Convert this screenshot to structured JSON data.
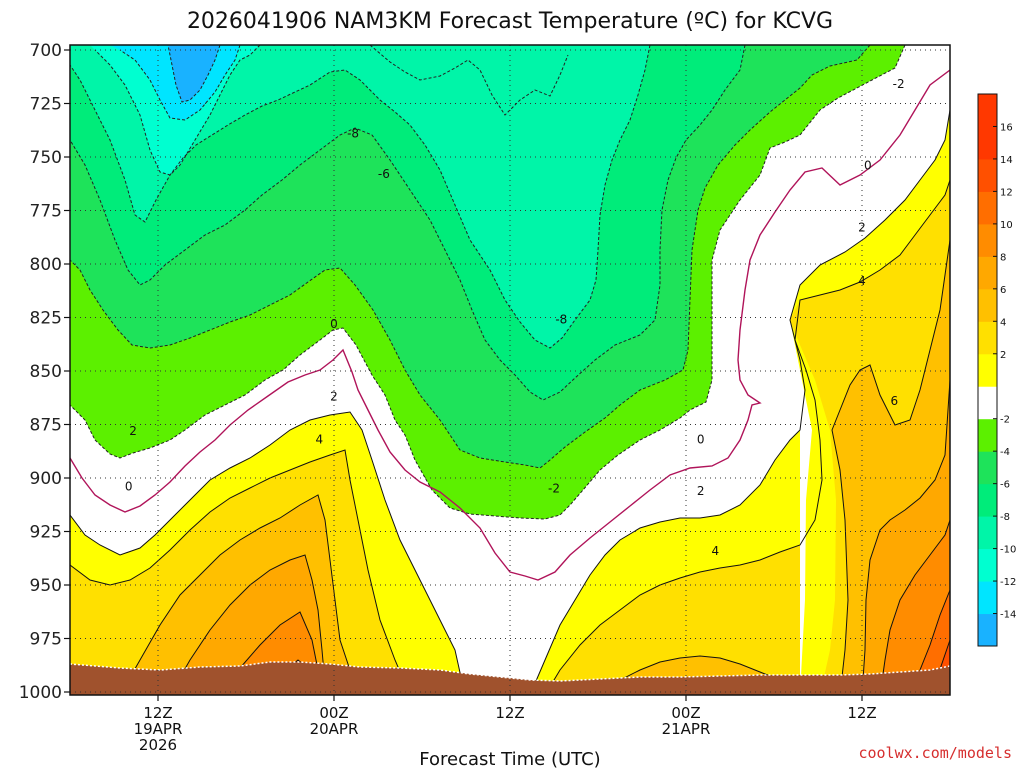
{
  "chart_data": {
    "type": "heatmap",
    "title": "2026041906 NAM3KM Forecast Temperature (ºC) for KCVG",
    "xlabel": "Forecast Time (UTC)",
    "ylabel": "",
    "y_scale": "pressure (hPa), increasing downward",
    "ylim": [
      700,
      1000
    ],
    "yticks": [
      "700",
      "725",
      "750",
      "775",
      "800",
      "825",
      "850",
      "875",
      "900",
      "925",
      "950",
      "975",
      "1000"
    ],
    "x_ticks": [
      {
        "hour": 6,
        "lines": [
          "12Z",
          "19APR",
          "2026"
        ]
      },
      {
        "hour": 18,
        "lines": [
          "00Z",
          "20APR"
        ]
      },
      {
        "hour": 30,
        "lines": [
          "12Z"
        ]
      },
      {
        "hour": 42,
        "lines": [
          "00Z",
          "21APR"
        ]
      },
      {
        "hour": 54,
        "lines": [
          "12Z"
        ]
      }
    ],
    "xlim_hours": [
      0,
      60
    ],
    "colorbar": {
      "levels": [
        -16,
        -14,
        -12,
        -10,
        -8,
        -6,
        -4,
        -2,
        0,
        2,
        4,
        6,
        8,
        10,
        12,
        14,
        16,
        18
      ],
      "labels": [
        "-14",
        "-12",
        "-10",
        "-8",
        "-6",
        "-4",
        "-2",
        "2",
        "4",
        "6",
        "8",
        "10",
        "12",
        "14",
        "16"
      ],
      "colors": [
        "#19b2ff",
        "#00e5ff",
        "#00ffd0",
        "#00f5a8",
        "#00ec7a",
        "#1ee35a",
        "#5cf000",
        "#ffffff",
        "#ffff00",
        "#ffe000",
        "#ffc000",
        "#ffa800",
        "#ff8c00",
        "#ff6e00",
        "#ff5000",
        "#ff3800",
        "#ff3800"
      ]
    },
    "contour_labels": [
      {
        "text": "-2",
        "hour": 56.5,
        "p": 716
      },
      {
        "text": "0",
        "hour": 54.4,
        "p": 754
      },
      {
        "text": "2",
        "hour": 54.0,
        "p": 783
      },
      {
        "text": "4",
        "hour": 54.0,
        "p": 808
      },
      {
        "text": "6",
        "hour": 56.2,
        "p": 864
      },
      {
        "text": "-8",
        "hour": 19.3,
        "p": 739
      },
      {
        "text": "-6",
        "hour": 21.4,
        "p": 758
      },
      {
        "text": "-8",
        "hour": 33.5,
        "p": 826
      },
      {
        "text": "0",
        "hour": 18.0,
        "p": 828
      },
      {
        "text": "2",
        "hour": 18.0,
        "p": 862
      },
      {
        "text": "4",
        "hour": 17.0,
        "p": 882
      },
      {
        "text": "2",
        "hour": 4.3,
        "p": 878
      },
      {
        "text": "0",
        "hour": 4.0,
        "p": 904
      },
      {
        "text": "-2",
        "hour": 33.0,
        "p": 905
      },
      {
        "text": "0",
        "hour": 43.0,
        "p": 882
      },
      {
        "text": "2",
        "hour": 43.0,
        "p": 906
      },
      {
        "text": "4",
        "hour": 44.0,
        "p": 934
      }
    ],
    "grid": true,
    "legend": "colorbar right"
  },
  "credit": "coolwx.com/models"
}
